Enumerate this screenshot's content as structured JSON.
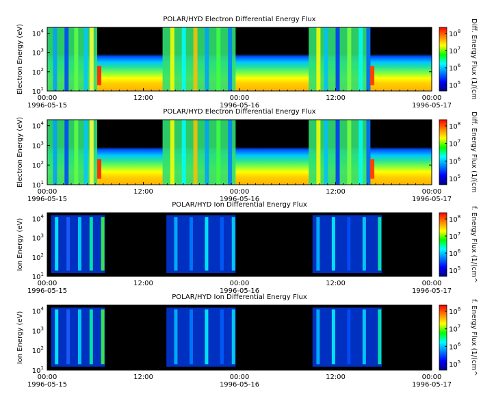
{
  "chart_data": [
    {
      "type": "heatmap",
      "title": "POLAR/HYD  Electron Differential Energy Flux",
      "ylabel": "Electron Energy (eV)",
      "colorbar_label": "Diff. Energy Flux (1/(cm",
      "yscale": "log",
      "ylim": [
        10,
        20000
      ],
      "y_ticks": [
        {
          "base": "10",
          "exp": "1"
        },
        {
          "base": "10",
          "exp": "2"
        },
        {
          "base": "10",
          "exp": "3"
        },
        {
          "base": "10",
          "exp": "4"
        }
      ],
      "colorbar_ticks": [
        {
          "base": "10",
          "exp": "5"
        },
        {
          "base": "10",
          "exp": "6"
        },
        {
          "base": "10",
          "exp": "7"
        },
        {
          "base": "10",
          "exp": "8"
        }
      ],
      "x_ticks": [
        "00:00",
        "12:00",
        "00:00",
        "12:00",
        "00:00"
      ],
      "x_dates": [
        "1996-05-15",
        "1996-05-16",
        "1996-05-17"
      ],
      "x_range": [
        "1996-05-15 00:00",
        "1996-05-17 00:00"
      ]
    },
    {
      "type": "heatmap",
      "title": "POLAR/HYD  Electron Differential Energy Flux",
      "ylabel": "Electron Energy (eV)",
      "colorbar_label": "Diff. Energy Flux (1/(cm",
      "yscale": "log",
      "ylim": [
        10,
        20000
      ],
      "y_ticks": [
        {
          "base": "10",
          "exp": "1"
        },
        {
          "base": "10",
          "exp": "2"
        },
        {
          "base": "10",
          "exp": "3"
        },
        {
          "base": "10",
          "exp": "4"
        }
      ],
      "colorbar_ticks": [
        {
          "base": "10",
          "exp": "5"
        },
        {
          "base": "10",
          "exp": "6"
        },
        {
          "base": "10",
          "exp": "7"
        },
        {
          "base": "10",
          "exp": "8"
        }
      ],
      "x_ticks": [
        "00:00",
        "12:00",
        "00:00",
        "12:00",
        "00:00"
      ],
      "x_dates": [
        "1996-05-15",
        "1996-05-16",
        "1996-05-17"
      ],
      "x_range": [
        "1996-05-15 00:00",
        "1996-05-17 00:00"
      ]
    },
    {
      "type": "heatmap",
      "title": "POLAR/HYD  Ion Differential Energy Flux",
      "ylabel": "Ion Energy (eV)",
      "colorbar_label": "f. Energy Flux (1/(cm^",
      "yscale": "log",
      "ylim": [
        10,
        20000
      ],
      "y_ticks": [
        {
          "base": "10",
          "exp": "1"
        },
        {
          "base": "10",
          "exp": "2"
        },
        {
          "base": "10",
          "exp": "3"
        },
        {
          "base": "10",
          "exp": "4"
        }
      ],
      "colorbar_ticks": [
        {
          "base": "10",
          "exp": "5"
        },
        {
          "base": "10",
          "exp": "6"
        },
        {
          "base": "10",
          "exp": "7"
        },
        {
          "base": "10",
          "exp": "8"
        }
      ],
      "x_ticks": [
        "00:00",
        "12:00",
        "00:00",
        "12:00",
        "00:00"
      ],
      "x_dates": [
        "1996-05-15",
        "1996-05-16",
        "1996-05-17"
      ],
      "x_range": [
        "1996-05-15 00:00",
        "1996-05-17 00:00"
      ]
    },
    {
      "type": "heatmap",
      "title": "POLAR/HYD  Ion Differential Energy Flux",
      "ylabel": "Ion Energy (eV)",
      "colorbar_label": "f. Energy Flux (1/(cm^",
      "yscale": "log",
      "ylim": [
        10,
        20000
      ],
      "y_ticks": [
        {
          "base": "10",
          "exp": "1"
        },
        {
          "base": "10",
          "exp": "2"
        },
        {
          "base": "10",
          "exp": "3"
        },
        {
          "base": "10",
          "exp": "4"
        }
      ],
      "colorbar_ticks": [
        {
          "base": "10",
          "exp": "5"
        },
        {
          "base": "10",
          "exp": "6"
        },
        {
          "base": "10",
          "exp": "7"
        },
        {
          "base": "10",
          "exp": "8"
        }
      ],
      "x_ticks": [
        "00:00",
        "12:00",
        "00:00",
        "12:00",
        "00:00"
      ],
      "x_dates": [
        "1996-05-15",
        "1996-05-16",
        "1996-05-17"
      ],
      "x_range": [
        "1996-05-15 00:00",
        "1996-05-17 00:00"
      ]
    }
  ],
  "colors": {
    "background": "#000000",
    "colorbar": [
      "#ff0000",
      "#ff8000",
      "#ffff00",
      "#00ff00",
      "#00ffff",
      "#0080ff",
      "#0000ff",
      "#000080"
    ]
  }
}
